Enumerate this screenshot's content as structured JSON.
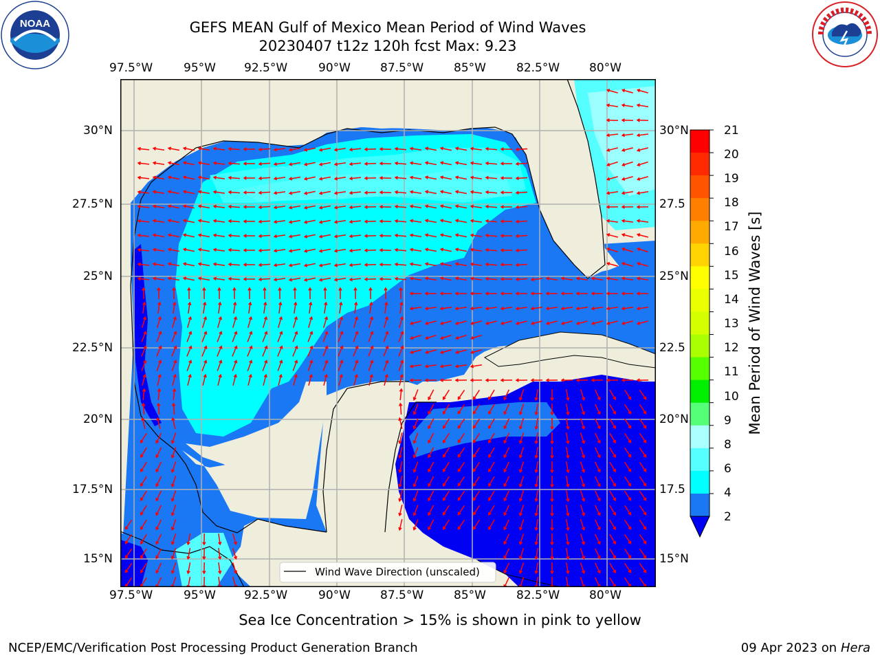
{
  "title": {
    "line1": "GEFS MEAN Gulf of Mexico Mean Period of Wind Waves",
    "line2": "20230407 t12z 120h fcst   Max: 9.23"
  },
  "logos": {
    "left_org": "NOAA",
    "left_ring": "NATIONAL OCEANIC AND ATMOSPHERIC ADMINISTRATION · U.S. DEPARTMENT OF COMMERCE",
    "right_ring": "NATIONAL WEATHER SERVICE"
  },
  "map": {
    "lon_ticks": [
      "97.5°W",
      "95°W",
      "92.5°W",
      "90°W",
      "87.5°W",
      "85°W",
      "82.5°W",
      "80°W"
    ],
    "lat_ticks_left": [
      "30°N",
      "27.5°N",
      "25°N",
      "22.5°N",
      "20°N",
      "17.5°N",
      "15°N"
    ],
    "lat_ticks_right": [
      "30°N",
      "27.5",
      "25°N",
      "22.5",
      "20°N",
      "17.5",
      "15°N"
    ],
    "legend": "Wind Wave Direction (unscaled)",
    "colors": {
      "land": "#efeddb",
      "deep_blue": "#0000f2",
      "mid_blue": "#1a78f5",
      "cyan": "#00ffff",
      "light_cyan": "#3dffff",
      "pale_cyan": "#9cffff",
      "arrow": "#ff0000",
      "grid": "#b0b0b0"
    }
  },
  "colorbar": {
    "label": "Mean Period of Wind Waves [s]",
    "ticks": [
      "21",
      "20",
      "19",
      "18",
      "17",
      "16",
      "15",
      "14",
      "13",
      "12",
      "11",
      "10",
      "9",
      "8",
      "6",
      "4",
      "2"
    ],
    "colors": [
      "#ff0000",
      "#ff2a00",
      "#ff5500",
      "#ff8000",
      "#ffaa00",
      "#ffd400",
      "#ffff00",
      "#eaff00",
      "#d4ff00",
      "#aaff00",
      "#55ff00",
      "#00ee00",
      "#55ff77",
      "#aaffff",
      "#55ffff",
      "#00ffff",
      "#1a78f5"
    ],
    "extend_color": "#0000f2"
  },
  "subtitle": "Sea Ice Concentration > 15% is shown in pink to yellow",
  "footer": {
    "left": "NCEP/EMC/Verification Post Processing Product Generation Branch",
    "right_prefix": "09 Apr 2023 on",
    "right_host": "Hera"
  }
}
